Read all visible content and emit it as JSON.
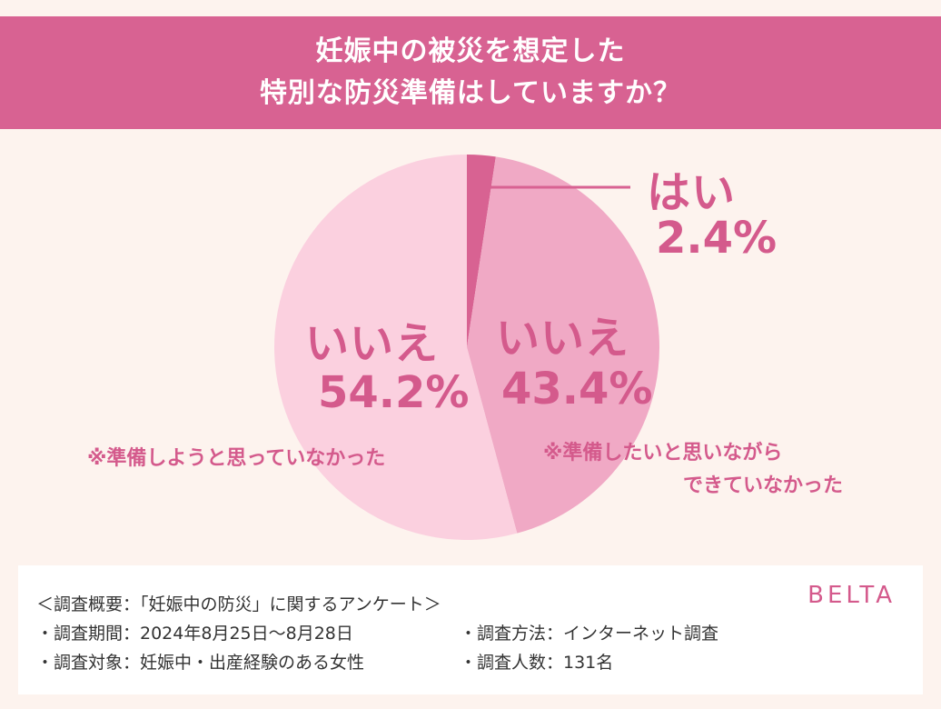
{
  "header": {
    "line1": "妊娠中の被災を想定した",
    "line2": "特別な防災準備はしていますか？"
  },
  "chart_data": {
    "type": "pie",
    "categories": [
      "はい",
      "いいえ（準備したいと思いながらできていなかった）",
      "いいえ（準備しようと思っていなかった）"
    ],
    "values": [
      2.4,
      43.4,
      54.2
    ],
    "unit": "%",
    "colors": [
      "#d86292",
      "#f0a9c5",
      "#fbd0df"
    ],
    "labels": {
      "yes": {
        "title": "はい",
        "pct": "2.4%"
      },
      "no_wanted": {
        "title": "いいえ",
        "pct": "43.4%",
        "note1": "※準備したいと思いながら",
        "note2": "できていなかった"
      },
      "no_not": {
        "title": "いいえ",
        "pct": "54.2%",
        "note1": "※準備しようと思っていなかった"
      }
    }
  },
  "footer": {
    "brand": "BELTA",
    "summary": "＜調査概要：「妊娠中の防災」に関するアンケート＞",
    "period": "・調査期間：2024年8月25日〜8月28日",
    "method": "・調査方法：インターネット調査",
    "target": "・調査対象：妊娠中・出産経験のある女性",
    "count": "・調査人数：131名"
  }
}
